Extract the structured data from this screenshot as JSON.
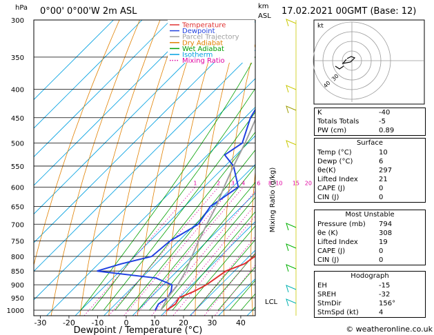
{
  "header": {
    "hpa_label": "hPa",
    "location": "0°00' 0°00'W 2m ASL",
    "km_label": "km",
    "asl_label": "ASL",
    "datetime": "17.02.2021 00GMT (Base: 12)"
  },
  "chart_data": {
    "type": "line",
    "title": "",
    "xlabel": "Dewpoint / Temperature (°C)",
    "ylabel": "hPa",
    "mixing_ratio_label": "Mixing Ratio (g/kg)",
    "pressure_ticks": [
      300,
      350,
      400,
      450,
      500,
      550,
      600,
      650,
      700,
      750,
      800,
      850,
      900,
      950,
      1000
    ],
    "x_ticks": [
      -30,
      -20,
      -10,
      0,
      10,
      20,
      30,
      40
    ],
    "xlim": [
      -40,
      40
    ],
    "ylim": [
      1050,
      300
    ],
    "mixing_ratio_values": [
      "1",
      "2",
      "3",
      "4",
      "6",
      "8",
      "10",
      "15",
      "20",
      "25"
    ],
    "lcl_label": "LCL",
    "legend": [
      {
        "name": "Temperature",
        "color": "#e03030"
      },
      {
        "name": "Dewpoint",
        "color": "#2040e0"
      },
      {
        "name": "Parcel Trajectory",
        "color": "#a0a0a0"
      },
      {
        "name": "Dry Adiabat",
        "color": "#e08000"
      },
      {
        "name": "Wet Adiabat",
        "color": "#00a000"
      },
      {
        "name": "Isotherm",
        "color": "#00a0e0"
      },
      {
        "name": "Mixing Ratio",
        "color": "#e000a0"
      }
    ],
    "series": [
      {
        "name": "Temperature",
        "color": "#e03030",
        "points": [
          [
            1000,
            10
          ],
          [
            975,
            11
          ],
          [
            950,
            10
          ],
          [
            925,
            13
          ],
          [
            900,
            15
          ],
          [
            875,
            16
          ],
          [
            850,
            17
          ],
          [
            825,
            21
          ],
          [
            800,
            22
          ],
          [
            750,
            19
          ],
          [
            700,
            16
          ],
          [
            650,
            13
          ],
          [
            600,
            10
          ],
          [
            550,
            7
          ],
          [
            500,
            3
          ],
          [
            450,
            -2
          ],
          [
            400,
            -7
          ],
          [
            350,
            -13
          ],
          [
            300,
            -19
          ]
        ]
      },
      {
        "name": "Dewpoint",
        "color": "#2040e0",
        "points": [
          [
            1000,
            6
          ],
          [
            975,
            5
          ],
          [
            950,
            6
          ],
          [
            925,
            5
          ],
          [
            900,
            3
          ],
          [
            875,
            -5
          ],
          [
            850,
            -28
          ],
          [
            825,
            -22
          ],
          [
            800,
            -14
          ],
          [
            750,
            -13
          ],
          [
            700,
            -9
          ],
          [
            650,
            -11
          ],
          [
            600,
            -8
          ],
          [
            550,
            -17
          ],
          [
            525,
            -24
          ],
          [
            500,
            -22
          ],
          [
            450,
            -28
          ],
          [
            400,
            -32
          ],
          [
            350,
            -37
          ],
          [
            300,
            -42
          ]
        ]
      },
      {
        "name": "Parcel Trajectory",
        "color": "#a0a0a0",
        "points": [
          [
            1000,
            8
          ],
          [
            950,
            6
          ],
          [
            900,
            5
          ],
          [
            850,
            3
          ],
          [
            800,
            0
          ],
          [
            750,
            -3
          ],
          [
            700,
            -6
          ],
          [
            650,
            -9
          ],
          [
            600,
            -13
          ],
          [
            550,
            -17
          ],
          [
            500,
            -21
          ],
          [
            450,
            -26
          ],
          [
            400,
            -32
          ],
          [
            350,
            -38
          ],
          [
            300,
            -45
          ]
        ]
      }
    ]
  },
  "hodograph": {
    "label": "kt"
  },
  "indices": {
    "k_label": "K",
    "k_value": "-40",
    "tt_label": "Totals Totals",
    "tt_value": "-5",
    "pw_label": "PW (cm)",
    "pw_value": "0.89"
  },
  "surface": {
    "title": "Surface",
    "rows": [
      {
        "label": "Temp (°C)",
        "value": "10"
      },
      {
        "label": "Dewp (°C)",
        "value": "6"
      },
      {
        "label": "θe(K)",
        "value": "297"
      },
      {
        "label": "Lifted Index",
        "value": "21"
      },
      {
        "label": "CAPE (J)",
        "value": "0"
      },
      {
        "label": "CIN (J)",
        "value": "0"
      }
    ]
  },
  "most_unstable": {
    "title": "Most Unstable",
    "rows": [
      {
        "label": "Pressure (mb)",
        "value": "794"
      },
      {
        "label": "θe (K)",
        "value": "308"
      },
      {
        "label": "Lifted Index",
        "value": "19"
      },
      {
        "label": "CAPE (J)",
        "value": "0"
      },
      {
        "label": "CIN (J)",
        "value": "0"
      }
    ]
  },
  "hodograph_table": {
    "title": "Hodograph",
    "rows": [
      {
        "label": "EH",
        "value": "-15"
      },
      {
        "label": "SREH",
        "value": "-32"
      },
      {
        "label": "StmDir",
        "value": "156°"
      },
      {
        "label": "StmSpd (kt)",
        "value": "4"
      }
    ]
  },
  "footer": {
    "credit": "© weatheronline.co.uk"
  }
}
